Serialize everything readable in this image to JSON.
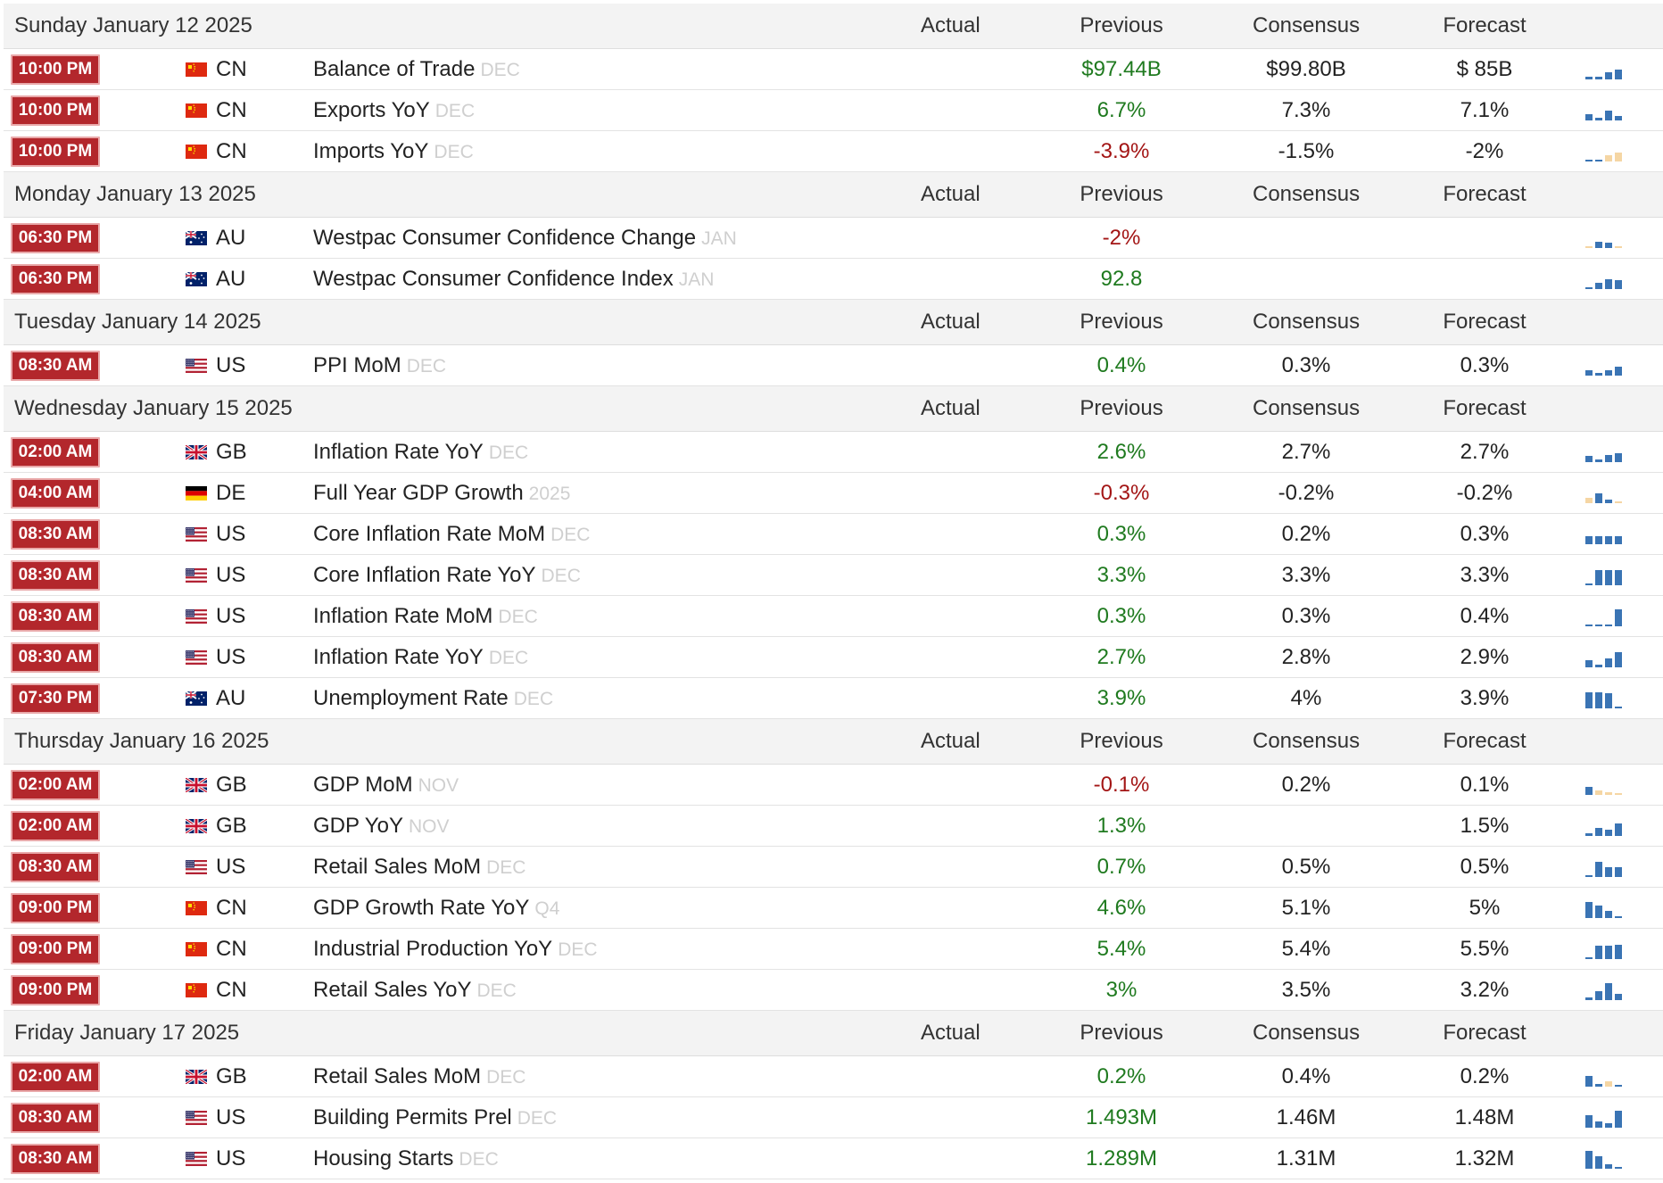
{
  "columns": {
    "actual": "Actual",
    "previous": "Previous",
    "consensus": "Consensus",
    "forecast": "Forecast"
  },
  "colors": {
    "time_badge": "#b3272c",
    "positive": "#1f7a1f",
    "negative": "#a31515",
    "spark_blue": "#3a74b4",
    "spark_light": "#f5d6a4"
  },
  "days": [
    {
      "date": "Sunday January 12 2025",
      "events": [
        {
          "time": "10:00 PM",
          "flag": "cn-flag",
          "country": "CN",
          "event": "Balance of Trade",
          "ref": "DEC",
          "actual": "",
          "previous": "$97.44B",
          "previous_tone": "pos",
          "consensus": "$99.80B",
          "forecast": "$ 85B",
          "spark": [
            3,
            3,
            8,
            11
          ],
          "spark_neg": [
            0,
            0,
            0,
            0
          ]
        },
        {
          "time": "10:00 PM",
          "flag": "cn-flag",
          "country": "CN",
          "event": "Exports YoY",
          "ref": "DEC",
          "actual": "",
          "previous": "6.7%",
          "previous_tone": "pos",
          "consensus": "7.3%",
          "forecast": "7.1%",
          "spark": [
            7,
            3,
            11,
            5
          ],
          "spark_neg": [
            0,
            0,
            0,
            0
          ]
        },
        {
          "time": "10:00 PM",
          "flag": "cn-flag",
          "country": "CN",
          "event": "Imports YoY",
          "ref": "DEC",
          "actual": "",
          "previous": "-3.9%",
          "previous_tone": "neg",
          "consensus": "-1.5%",
          "forecast": "-2%",
          "spark": [
            2,
            2,
            7,
            10
          ],
          "spark_neg": [
            0,
            0,
            1,
            1
          ]
        }
      ]
    },
    {
      "date": "Monday January 13 2025",
      "events": [
        {
          "time": "06:30 PM",
          "flag": "au-flag",
          "country": "AU",
          "event": "Westpac Consumer Confidence Change",
          "ref": "JAN",
          "actual": "",
          "previous": "-2%",
          "previous_tone": "neg",
          "consensus": "",
          "forecast": "",
          "spark": [
            2,
            7,
            6,
            2
          ],
          "spark_neg": [
            1,
            0,
            0,
            1
          ]
        },
        {
          "time": "06:30 PM",
          "flag": "au-flag",
          "country": "AU",
          "event": "Westpac Consumer Confidence Index",
          "ref": "JAN",
          "actual": "",
          "previous": "92.8",
          "previous_tone": "pos",
          "consensus": "",
          "forecast": "",
          "spark": [
            2,
            7,
            11,
            10
          ],
          "spark_neg": [
            0,
            0,
            0,
            0
          ]
        }
      ]
    },
    {
      "date": "Tuesday January 14 2025",
      "events": [
        {
          "time": "08:30 AM",
          "flag": "us-flag",
          "country": "US",
          "event": "PPI MoM",
          "ref": "DEC",
          "actual": "",
          "previous": "0.4%",
          "previous_tone": "pos",
          "consensus": "0.3%",
          "forecast": "0.3%",
          "spark": [
            6,
            3,
            6,
            10
          ],
          "spark_neg": [
            0,
            0,
            0,
            0
          ]
        }
      ]
    },
    {
      "date": "Wednesday January 15 2025",
      "events": [
        {
          "time": "02:00 AM",
          "flag": "gb-flag",
          "country": "GB",
          "event": "Inflation Rate YoY",
          "ref": "DEC",
          "actual": "",
          "previous": "2.6%",
          "previous_tone": "pos",
          "consensus": "2.7%",
          "forecast": "2.7%",
          "spark": [
            7,
            3,
            8,
            10
          ],
          "spark_neg": [
            0,
            0,
            0,
            0
          ]
        },
        {
          "time": "04:00 AM",
          "flag": "de-flag",
          "country": "DE",
          "event": "Full Year GDP Growth",
          "ref": "2025",
          "actual": "",
          "previous": "-0.3%",
          "previous_tone": "neg",
          "consensus": "-0.2%",
          "forecast": "-0.2%",
          "spark": [
            6,
            11,
            4,
            1
          ],
          "spark_neg": [
            1,
            0,
            0,
            1
          ]
        },
        {
          "time": "08:30 AM",
          "flag": "us-flag",
          "country": "US",
          "event": "Core Inflation Rate MoM",
          "ref": "DEC",
          "actual": "",
          "previous": "0.3%",
          "previous_tone": "pos",
          "consensus": "0.2%",
          "forecast": "0.3%",
          "spark": [
            9,
            9,
            9,
            9
          ],
          "spark_neg": [
            0,
            0,
            0,
            0
          ]
        },
        {
          "time": "08:30 AM",
          "flag": "us-flag",
          "country": "US",
          "event": "Core Inflation Rate YoY",
          "ref": "DEC",
          "actual": "",
          "previous": "3.3%",
          "previous_tone": "pos",
          "consensus": "3.3%",
          "forecast": "3.3%",
          "spark": [
            2,
            17,
            17,
            17
          ],
          "spark_neg": [
            0,
            0,
            0,
            0
          ]
        },
        {
          "time": "08:30 AM",
          "flag": "us-flag",
          "country": "US",
          "event": "Inflation Rate MoM",
          "ref": "DEC",
          "actual": "",
          "previous": "0.3%",
          "previous_tone": "pos",
          "consensus": "0.3%",
          "forecast": "0.4%",
          "spark": [
            2,
            2,
            2,
            19
          ],
          "spark_neg": [
            0,
            0,
            0,
            0
          ]
        },
        {
          "time": "08:30 AM",
          "flag": "us-flag",
          "country": "US",
          "event": "Inflation Rate YoY",
          "ref": "DEC",
          "actual": "",
          "previous": "2.7%",
          "previous_tone": "pos",
          "consensus": "2.8%",
          "forecast": "2.9%",
          "spark": [
            8,
            3,
            10,
            17
          ],
          "spark_neg": [
            0,
            0,
            0,
            0
          ]
        },
        {
          "time": "07:30 PM",
          "flag": "au-flag",
          "country": "AU",
          "event": "Unemployment Rate",
          "ref": "DEC",
          "actual": "",
          "previous": "3.9%",
          "previous_tone": "pos",
          "consensus": "4%",
          "forecast": "3.9%",
          "spark": [
            18,
            18,
            17,
            2
          ],
          "spark_neg": [
            0,
            0,
            0,
            0
          ]
        }
      ]
    },
    {
      "date": "Thursday January 16 2025",
      "events": [
        {
          "time": "02:00 AM",
          "flag": "gb-flag",
          "country": "GB",
          "event": "GDP MoM",
          "ref": "NOV",
          "actual": "",
          "previous": "-0.1%",
          "previous_tone": "neg",
          "consensus": "0.2%",
          "forecast": "0.1%",
          "spark": [
            9,
            5,
            3,
            2
          ],
          "spark_neg": [
            0,
            1,
            1,
            1
          ]
        },
        {
          "time": "02:00 AM",
          "flag": "gb-flag",
          "country": "GB",
          "event": "GDP YoY",
          "ref": "NOV",
          "actual": "",
          "previous": "1.3%",
          "previous_tone": "pos",
          "consensus": "",
          "forecast": "1.5%",
          "spark": [
            3,
            9,
            7,
            14
          ],
          "spark_neg": [
            0,
            0,
            0,
            0
          ]
        },
        {
          "time": "08:30 AM",
          "flag": "us-flag",
          "country": "US",
          "event": "Retail Sales MoM",
          "ref": "DEC",
          "actual": "",
          "previous": "0.7%",
          "previous_tone": "pos",
          "consensus": "0.5%",
          "forecast": "0.5%",
          "spark": [
            2,
            17,
            11,
            11
          ],
          "spark_neg": [
            0,
            0,
            0,
            0
          ]
        },
        {
          "time": "09:00 PM",
          "flag": "cn-flag",
          "country": "CN",
          "event": "GDP Growth Rate YoY",
          "ref": "Q4",
          "actual": "",
          "previous": "4.6%",
          "previous_tone": "pos",
          "consensus": "5.1%",
          "forecast": "5%",
          "spark": [
            18,
            14,
            8,
            2
          ],
          "spark_neg": [
            0,
            0,
            0,
            0
          ]
        },
        {
          "time": "09:00 PM",
          "flag": "cn-flag",
          "country": "CN",
          "event": "Industrial Production YoY",
          "ref": "DEC",
          "actual": "",
          "previous": "5.4%",
          "previous_tone": "pos",
          "consensus": "5.4%",
          "forecast": "5.5%",
          "spark": [
            2,
            15,
            15,
            16
          ],
          "spark_neg": [
            0,
            0,
            0,
            0
          ]
        },
        {
          "time": "09:00 PM",
          "flag": "cn-flag",
          "country": "CN",
          "event": "Retail Sales YoY",
          "ref": "DEC",
          "actual": "",
          "previous": "3%",
          "previous_tone": "pos",
          "consensus": "3.5%",
          "forecast": "3.2%",
          "spark": [
            3,
            10,
            19,
            7
          ],
          "spark_neg": [
            0,
            0,
            0,
            0
          ]
        }
      ]
    },
    {
      "date": "Friday January 17 2025",
      "events": [
        {
          "time": "02:00 AM",
          "flag": "gb-flag",
          "country": "GB",
          "event": "Retail Sales MoM",
          "ref": "DEC",
          "actual": "",
          "previous": "0.2%",
          "previous_tone": "pos",
          "consensus": "0.4%",
          "forecast": "0.2%",
          "spark": [
            12,
            3,
            6,
            2
          ],
          "spark_neg": [
            0,
            0,
            1,
            0
          ]
        },
        {
          "time": "08:30 AM",
          "flag": "us-flag",
          "country": "US",
          "event": "Building Permits Prel",
          "ref": "DEC",
          "actual": "",
          "previous": "1.493M",
          "previous_tone": "pos",
          "consensus": "1.46M",
          "forecast": "1.48M",
          "spark": [
            14,
            7,
            5,
            19
          ],
          "spark_neg": [
            0,
            0,
            0,
            0
          ]
        },
        {
          "time": "08:30 AM",
          "flag": "us-flag",
          "country": "US",
          "event": "Housing Starts",
          "ref": "DEC",
          "actual": "",
          "previous": "1.289M",
          "previous_tone": "pos",
          "consensus": "1.31M",
          "forecast": "1.32M",
          "spark": [
            20,
            14,
            5,
            2
          ],
          "spark_neg": [
            0,
            0,
            0,
            0
          ]
        }
      ]
    }
  ]
}
